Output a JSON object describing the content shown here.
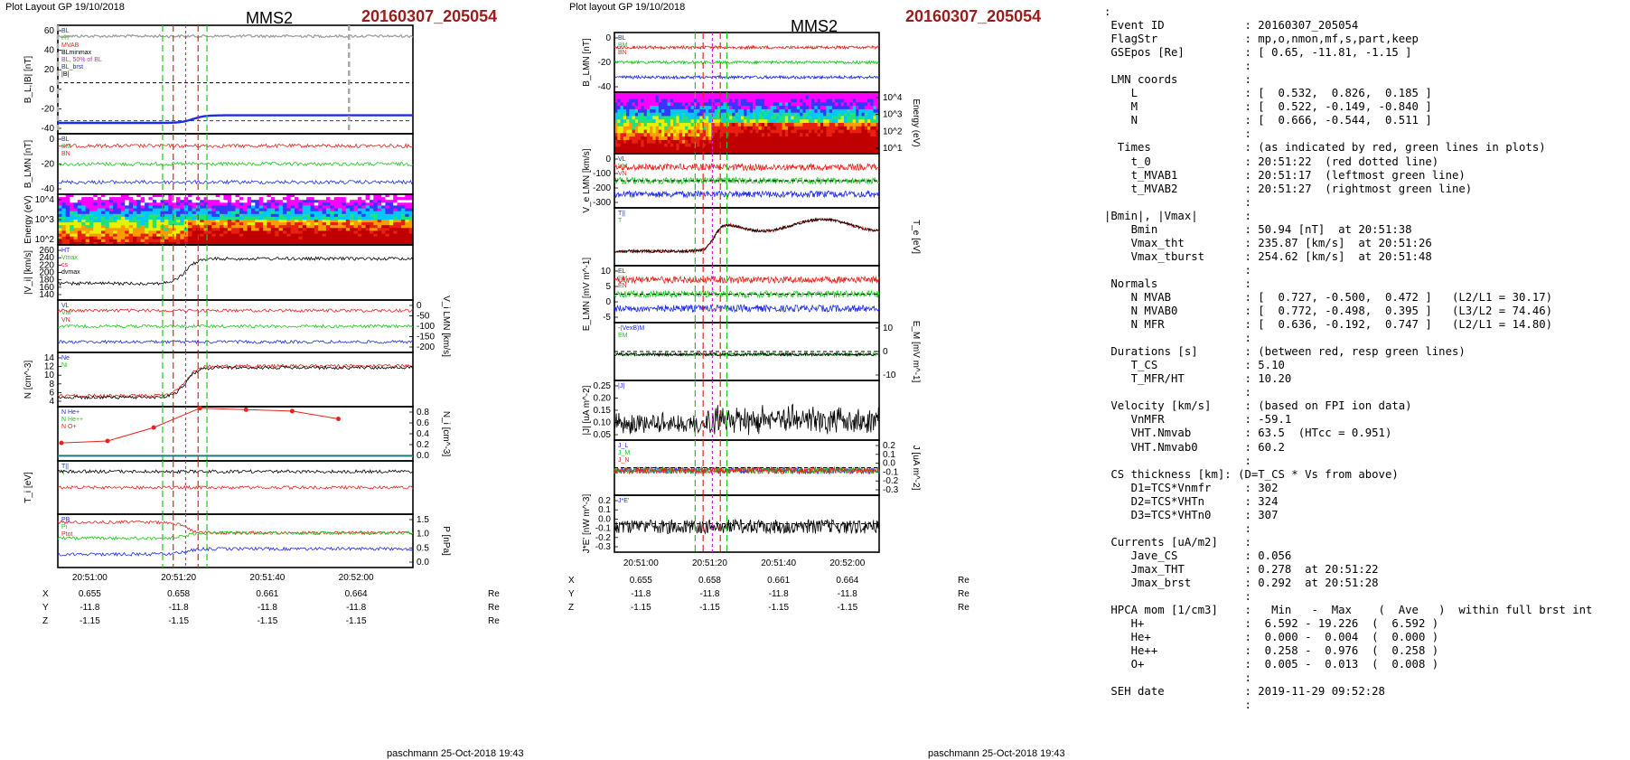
{
  "header": {
    "left_title": "Plot Layout GP 19/10/2018",
    "mid_title": "Plot layout GP 19/10/2018",
    "spacecraft": "MMS2",
    "event": "20160307_205054",
    "footer": "paschmann 25-Oct-2018 19:43"
  },
  "colors": {
    "red": "#e8241c",
    "green": "#1ec81e",
    "blue": "#1c2ce8",
    "black": "#000000",
    "magenta": "#d11fd1",
    "event": "#9b1c1c"
  },
  "chart_data": [
    {
      "type": "line",
      "id": "left-stack",
      "time_ticks": [
        "20:51:00",
        "20:51:20",
        "20:51:40",
        "20:52:00"
      ],
      "position_table": {
        "rows": [
          {
            "label": "X",
            "values": [
              "0.655",
              "0.658",
              "0.661",
              "0.664"
            ],
            "unit": "Re"
          },
          {
            "label": "Y",
            "values": [
              "-11.8",
              "-11.8",
              "-11.8",
              "-11.8"
            ],
            "unit": "Re"
          },
          {
            "label": "Z",
            "values": [
              "-1.15",
              "-1.15",
              "-1.15",
              "-1.15"
            ],
            "unit": "Re"
          }
        ]
      },
      "panels": [
        {
          "ylabel": "B_L,|B| [nT]",
          "yticks": [
            "60",
            "40",
            "20",
            "0",
            "-20",
            "-40"
          ],
          "legend": [
            "BL",
            "HT",
            "MVAB",
            "BLminmax",
            "BL, 50% of BL",
            "BL_brst",
            "|B|"
          ]
        },
        {
          "ylabel": "B_LMN [nT]",
          "yticks": [
            "0",
            "-20",
            "-40"
          ],
          "legend": [
            "BL",
            "BM",
            "BN"
          ]
        },
        {
          "ylabel": "Energy (eV)",
          "yticks": [
            "10^4",
            "10^3",
            "10^2"
          ],
          "kind": "spectrogram"
        },
        {
          "ylabel": "|V_i| [km/s]",
          "yticks": [
            "260",
            "240",
            "220",
            "200",
            "180",
            "160",
            "140"
          ],
          "legend": [
            "HT",
            "Vmax",
            "cs",
            "dvmax"
          ]
        },
        {
          "ylabel": "V_i LMN [km/s]",
          "yticks": [
            "0",
            "-50",
            "-100",
            "-150",
            "-200"
          ],
          "legend": [
            "VL",
            "VM",
            "VN"
          ],
          "side": "right"
        },
        {
          "ylabel": "N [cm^-3]",
          "yticks": [
            "14",
            "12",
            "10",
            "8",
            "6",
            "4"
          ],
          "legend": [
            "Ne",
            "Ni"
          ]
        },
        {
          "ylabel": "N_i [cm^-3]",
          "yticks": [
            "0.8",
            "0.6",
            "0.4",
            "0.2",
            "0.0"
          ],
          "legend": [
            "N He+",
            "N He++",
            "N O+"
          ],
          "side": "right",
          "hpca_he_pp": {
            "x": [
              0,
              1,
              2,
              3,
              4,
              5,
              6
            ],
            "values": [
              0.26,
              0.3,
              0.58,
              0.98,
              0.95,
              0.92,
              0.76
            ]
          }
        },
        {
          "ylabel": "T_i [eV]",
          "yticks": [],
          "legend": [
            "T||",
            "T"
          ]
        },
        {
          "ylabel": "P [nPa]",
          "yticks": [
            "1.5",
            "1.0",
            "0.5",
            "0.0"
          ],
          "legend": [
            "PB",
            "Pi",
            "Ptot"
          ],
          "side": "right"
        }
      ]
    },
    {
      "type": "line",
      "id": "middle-stack",
      "time_ticks": [
        "20:51:00",
        "20:51:20",
        "20:51:40",
        "20:52:00"
      ],
      "position_table": {
        "rows": [
          {
            "label": "X",
            "values": [
              "0.655",
              "0.658",
              "0.661",
              "0.664"
            ],
            "unit": "Re"
          },
          {
            "label": "Y",
            "values": [
              "-11.8",
              "-11.8",
              "-11.8",
              "-11.8"
            ],
            "unit": "Re"
          },
          {
            "label": "Z",
            "values": [
              "-1.15",
              "-1.15",
              "-1.15",
              "-1.15"
            ],
            "unit": "Re"
          }
        ]
      },
      "panels": [
        {
          "ylabel": "B_LMN [nT]",
          "yticks": [
            "0",
            "-20",
            "-40"
          ],
          "legend": [
            "BL",
            "BM",
            "BN"
          ]
        },
        {
          "ylabel": "Energy (eV)",
          "yticks": [
            "10^4",
            "10^3",
            "10^2",
            "10^1"
          ],
          "kind": "spectrogram",
          "side": "right"
        },
        {
          "ylabel": "V_e LMN [km/s]",
          "yticks": [
            "0",
            "-100",
            "-200",
            "-300"
          ],
          "legend": [
            "VL",
            "VM",
            "VN"
          ]
        },
        {
          "ylabel": "T_e [eV]",
          "yticks": [],
          "legend": [
            "T||",
            "T"
          ],
          "side": "right"
        },
        {
          "ylabel": "E_LMN [mV m^-1]",
          "yticks": [
            "10",
            "5",
            "0",
            "-5"
          ],
          "legend": [
            "EL",
            "EM",
            "EN"
          ]
        },
        {
          "ylabel": "E_M [mV m^-1]",
          "yticks": [
            "10",
            "0",
            "-10"
          ],
          "legend": [
            "-(VexB)M",
            "EM"
          ],
          "side": "right"
        },
        {
          "ylabel": "|J| [uA m^-2]",
          "yticks": [
            "0.25",
            "0.20",
            "0.15",
            "0.10",
            "0.05"
          ],
          "legend": [
            "|J|"
          ]
        },
        {
          "ylabel": "J [uA m^-2]",
          "yticks": [
            "0.2",
            "0.1",
            "0.0",
            "-0.1",
            "-0.2",
            "-0.3"
          ],
          "legend": [
            "J_L",
            "J_M",
            "J_N"
          ],
          "side": "right"
        },
        {
          "ylabel": "J*E' [nW m^-3]",
          "yticks": [
            "0.2",
            "0.1",
            "0.0",
            "-0.1",
            "-0.2",
            "-0.3"
          ],
          "legend": [
            "J*E'"
          ]
        }
      ]
    }
  ],
  "info_lines": [
    ":",
    " Event ID            : 20160307_205054",
    " FlagStr             : mp,o,nmon,mf,s,part,keep",
    " GSEpos [Re]         : [ 0.65, -11.81, -1.15 ]",
    "                     :",
    " LMN coords          :",
    "    L                : [  0.532,  0.826,  0.185 ]",
    "    M                : [  0.522, -0.149, -0.840 ]",
    "    N                : [  0.666, -0.544,  0.511 ]",
    "                     :",
    "  Times              : (as indicated by red, green lines in plots)",
    "    t_0              : 20:51:22  (red dotted line)",
    "    t_MVAB1          : 20:51:17  (leftmost green line)",
    "    t_MVAB2          : 20:51:27  (rightmost green line)",
    "                     :",
    "|Bmin|, |Vmax|       :",
    "    Bmin             : 50.94 [nT]  at 20:51:38",
    "    Vmax_tht         : 235.87 [km/s]  at 20:51:26",
    "    Vmax_tburst      : 254.62 [km/s]  at 20:51:48",
    "                     :",
    " Normals             :",
    "    N MVAB           : [  0.727, -0.500,  0.472 ]   (L2/L1 = 30.17)",
    "    N MVAB0          : [  0.772, -0.498,  0.395 ]   (L3/L2 = 74.46)",
    "    N MFR            : [  0.636, -0.192,  0.747 ]   (L2/L1 = 14.80)",
    "                     :",
    " Durations [s]       : (between red, resp green lines)",
    "    T_CS             : 5.10",
    "    T_MFR/HT         : 10.20",
    "                     :",
    " Velocity [km/s]     : (based on FPI ion data)",
    "    VnMFR            : -59.1",
    "    VHT.Nmvab        : 63.5  (HTcc = 0.951)",
    "    VHT.Nmvab0       : 60.2",
    "                     :",
    " CS thickness [km]: (D=T_CS * Vs from above)",
    "    D1=TCS*Vnmfr     : 302",
    "    D2=TCS*VHTn      : 324",
    "    D3=TCS*VHTn0     : 307",
    "                     :",
    " Currents [uA/m2]    :",
    "    Jave_CS          : 0.056",
    "    Jmax_THT         : 0.278  at 20:51:22",
    "    Jmax_brst        : 0.292  at 20:51:28",
    "                     :",
    " HPCA mom [1/cm3]    :   Min   -  Max    (  Ave   )  within full brst int",
    "    H+               :  6.592 - 19.226  (  6.592 )",
    "    He+              :  0.000 -  0.004  (  0.000 )",
    "    He++             :  0.258 -  0.976  (  0.258 )",
    "    O+               :  0.005 -  0.013  (  0.008 )",
    "                     :",
    " SEH date            : 2019-11-29 09:52:28",
    "                     :"
  ]
}
